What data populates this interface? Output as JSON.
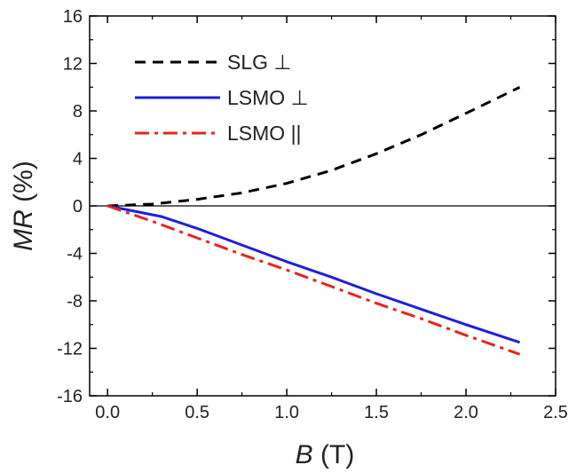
{
  "chart_data": {
    "type": "line",
    "xlabel_italic": "B",
    "xlabel_unit": " (T)",
    "ylabel_italic": "MR",
    "ylabel_unit": " (%)",
    "xlim": [
      -0.1,
      2.5
    ],
    "ylim": [
      -16,
      16
    ],
    "xticks": [
      0.0,
      0.5,
      1.0,
      1.5,
      2.0,
      2.5
    ],
    "xtick_labels": [
      "0.0",
      "0.5",
      "1.0",
      "1.5",
      "2.0",
      "2.5"
    ],
    "yticks": [
      -16,
      -12,
      -8,
      -4,
      0,
      4,
      8,
      12,
      16
    ],
    "ytick_labels": [
      "-16",
      "-12",
      "-8",
      "-4",
      "0",
      "4",
      "8",
      "12",
      "16"
    ],
    "grid": false,
    "zero_line": true,
    "legend_position": "top-left",
    "series": [
      {
        "name": "SLG ⊥",
        "color": "#000000",
        "dash": "dashed",
        "x": [
          0.0,
          0.25,
          0.5,
          0.75,
          1.0,
          1.25,
          1.5,
          1.75,
          2.0,
          2.3
        ],
        "y": [
          0.0,
          0.15,
          0.55,
          1.1,
          1.9,
          3.0,
          4.4,
          6.0,
          7.8,
          10.0
        ]
      },
      {
        "name": "LSMO ⊥",
        "color": "#1f1fd6",
        "dash": "solid",
        "x": [
          0.0,
          0.1,
          0.2,
          0.3,
          0.5,
          0.75,
          1.0,
          1.25,
          1.5,
          1.75,
          2.0,
          2.3
        ],
        "y": [
          0.0,
          -0.3,
          -0.6,
          -0.9,
          -1.9,
          -3.3,
          -4.7,
          -6.0,
          -7.4,
          -8.7,
          -10.0,
          -11.5
        ]
      },
      {
        "name": "LSMO ||",
        "color": "#e8231e",
        "dash": "dashdot",
        "x": [
          0.0,
          0.25,
          0.5,
          0.75,
          1.0,
          1.25,
          1.5,
          1.75,
          2.0,
          2.3
        ],
        "y": [
          0.0,
          -1.3,
          -2.7,
          -4.1,
          -5.4,
          -6.8,
          -8.2,
          -9.5,
          -10.9,
          -12.5
        ]
      }
    ]
  }
}
